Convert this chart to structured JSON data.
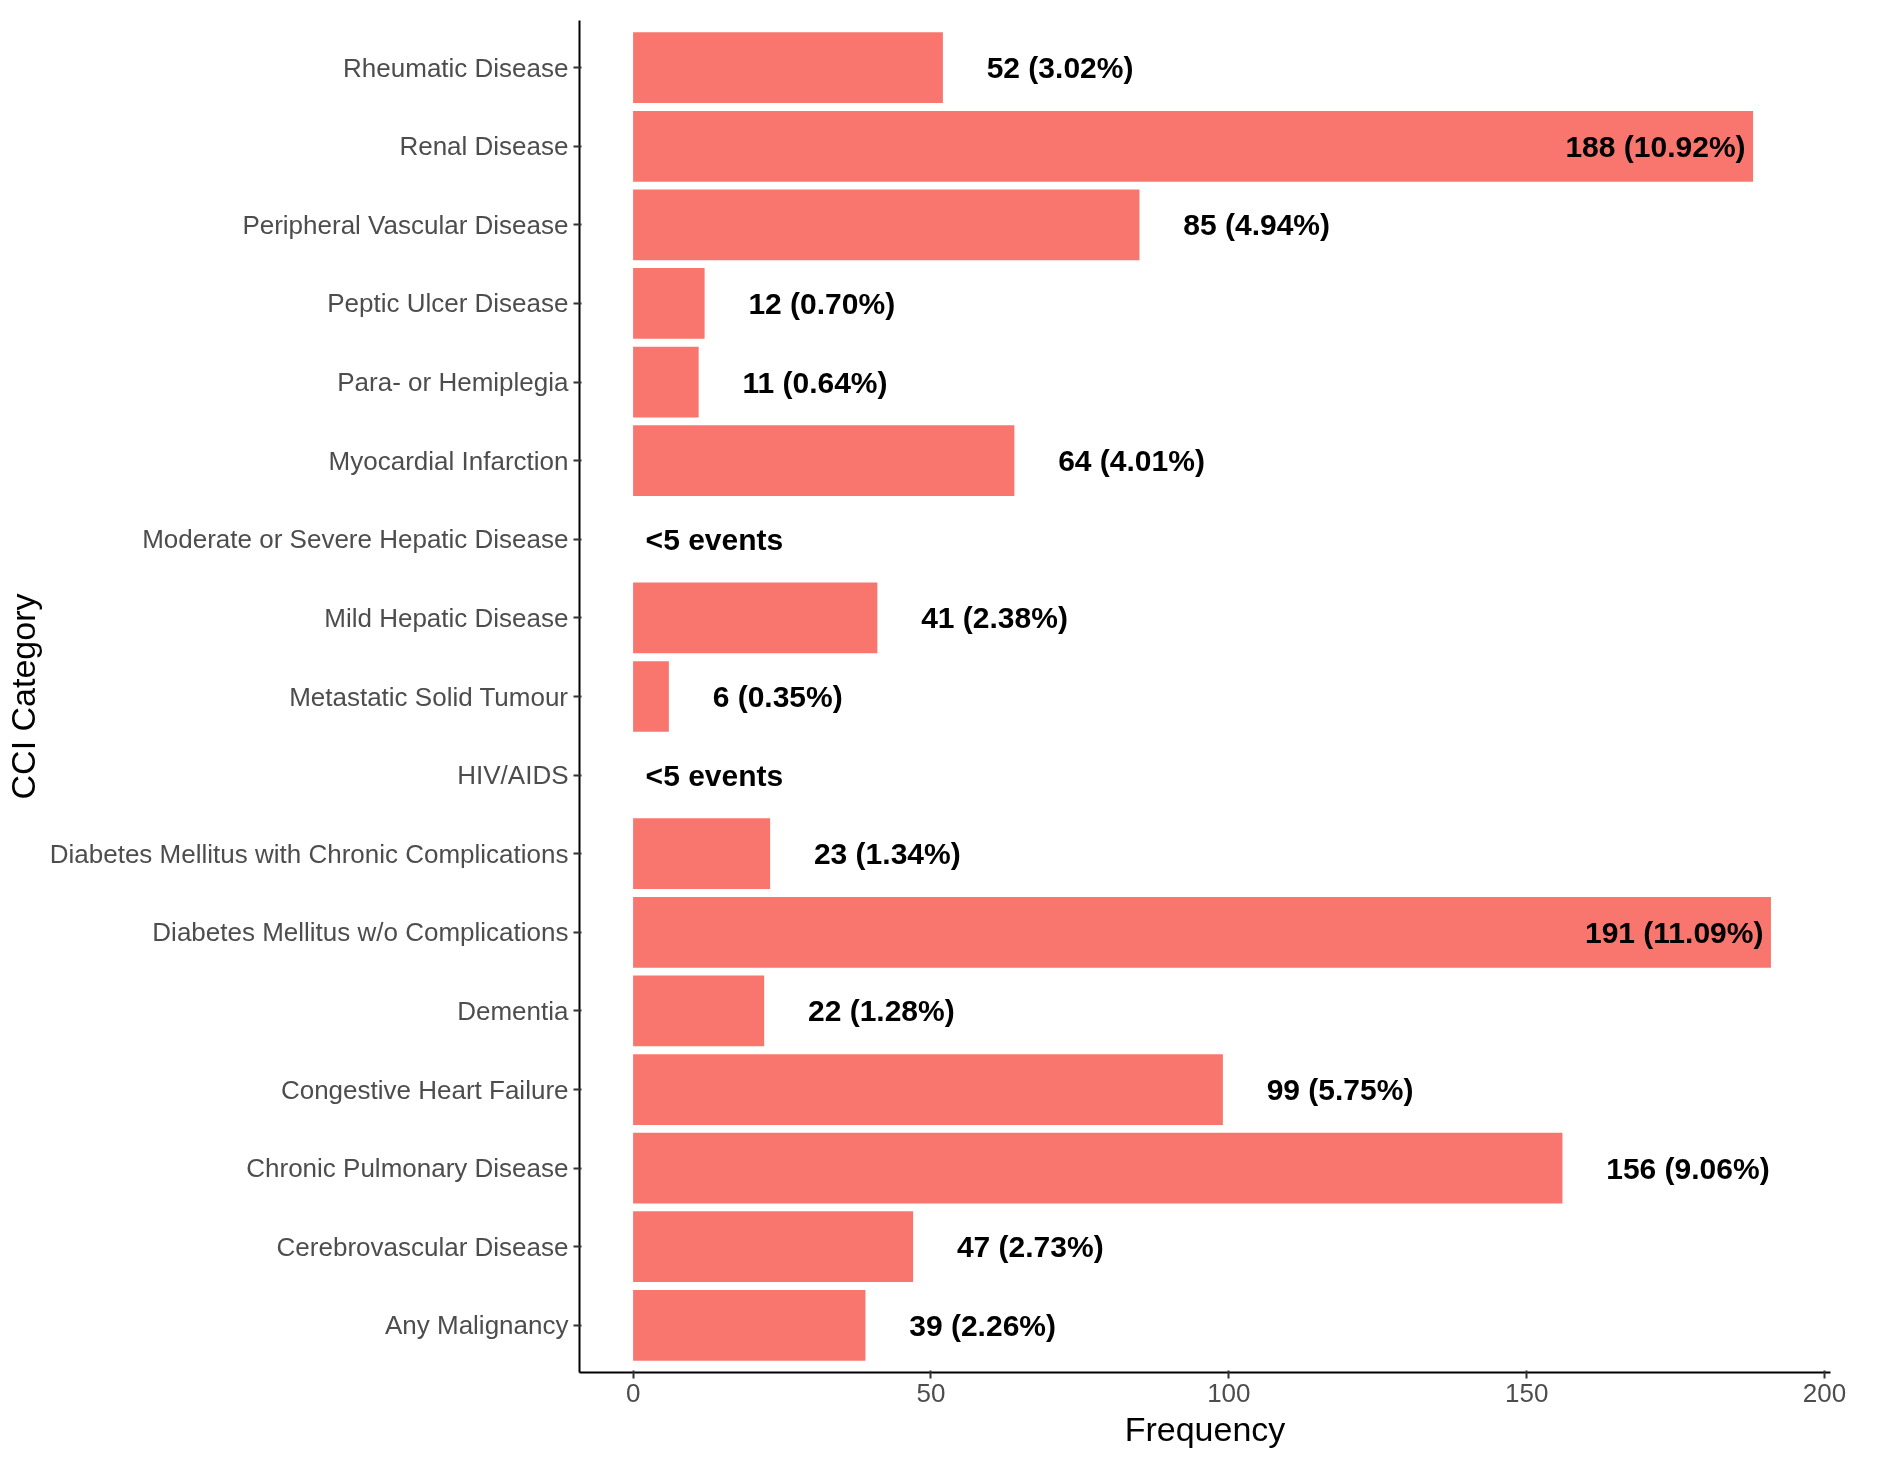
{
  "chart_data": {
    "type": "bar",
    "orientation": "horizontal",
    "xlabel": "Frequency",
    "ylabel": "CCI Category",
    "categories": [
      "Rheumatic Disease",
      "Renal Disease",
      "Peripheral Vascular Disease",
      "Peptic Ulcer Disease",
      "Para- or Hemiplegia",
      "Myocardial Infarction",
      "Moderate or Severe Hepatic Disease",
      "Mild Hepatic Disease",
      "Metastatic Solid Tumour",
      "HIV/AIDS",
      "Diabetes Mellitus with Chronic Complications",
      "Diabetes Mellitus w/o Complications",
      "Dementia",
      "Congestive Heart Failure",
      "Chronic Pulmonary Disease",
      "Cerebrovascular Disease",
      "Any Malignancy"
    ],
    "values": [
      52,
      188,
      85,
      12,
      11,
      64,
      null,
      41,
      6,
      null,
      23,
      191,
      22,
      99,
      156,
      47,
      39
    ],
    "value_labels": [
      "52 (3.02%)",
      "188 (10.92%)",
      "85 (4.94%)",
      "12 (0.70%)",
      "11 (0.64%)",
      "64 (4.01%)",
      "<5 events",
      "41 (2.38%)",
      "6 (0.35%)",
      "<5 events",
      "23 (1.34%)",
      "191 (11.09%)",
      "22 (1.28%)",
      "99 (5.75%)",
      "156 (9.06%)",
      "47 (2.73%)",
      "39 (2.26%)"
    ],
    "color": "#f8766d",
    "xlim": [
      -9,
      201
    ],
    "xticks": [
      0,
      50,
      100,
      150,
      200
    ],
    "grid": false
  }
}
